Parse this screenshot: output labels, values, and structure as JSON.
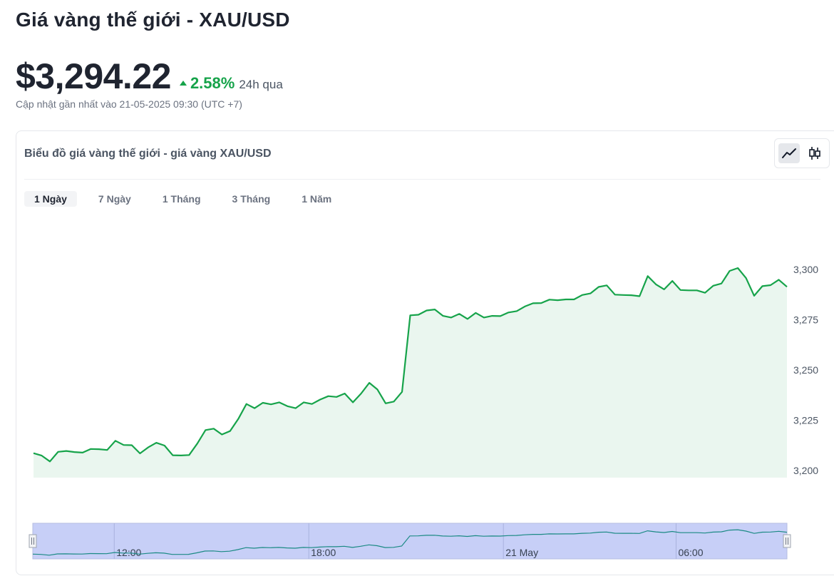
{
  "header": {
    "title": "Giá vàng thế giới - XAU/USD",
    "price": "$3,294.22",
    "change_pct": "2.58%",
    "change_period": "24h qua",
    "updated": "Cập nhật gần nhất vào 21-05-2025 09:30 (UTC +7)"
  },
  "card": {
    "title": "Biểu đồ giá vàng thế giới - giá vàng XAU/USD",
    "tabs": [
      {
        "label": "1 Ngày",
        "active": true
      },
      {
        "label": "7 Ngày",
        "active": false
      },
      {
        "label": "1 Tháng",
        "active": false
      },
      {
        "label": "3 Tháng",
        "active": false
      },
      {
        "label": "1 Năm",
        "active": false
      }
    ],
    "view_toggle": {
      "line_icon": "line-chart-icon",
      "candle_icon": "candlestick-icon",
      "active": "line"
    }
  },
  "colors": {
    "line": "#16a34a",
    "area": "#eaf6ef",
    "up": "#16a34a",
    "navigator_fill": "#c7cff7",
    "navigator_line": "#1b8a84"
  },
  "chart_data": {
    "type": "area",
    "title": "",
    "xlabel": "",
    "ylabel": "",
    "ylim": [
      3200,
      3310
    ],
    "yticks": [
      "3,200",
      "3,225",
      "3,250",
      "3,275",
      "3,300"
    ],
    "ytick_values": [
      3200,
      3225,
      3250,
      3275,
      3300
    ],
    "grid": false,
    "series": [
      {
        "values": [
          3208.6,
          3207.4,
          3204.5,
          3209.3,
          3209.7,
          3209.2,
          3208.9,
          3210.7,
          3210.6,
          3210.2,
          3214.8,
          3212.7,
          3212.6,
          3208.5,
          3211.5,
          3213.8,
          3212.4,
          3207.6,
          3207.5,
          3207.7,
          3213.4,
          3220.1,
          3220.8,
          3217.9,
          3219.6,
          3225.6,
          3233.1,
          3231.0,
          3233.7,
          3232.9,
          3233.9,
          3232.0,
          3231.0,
          3233.9,
          3233.1,
          3235.3,
          3237.0,
          3236.6,
          3238.3,
          3233.9,
          3238.3,
          3243.6,
          3240.3,
          3233.4,
          3234.3,
          3239.1,
          3277.2,
          3277.5,
          3279.6,
          3280.1,
          3276.9,
          3276.1,
          3277.9,
          3275.4,
          3278.4,
          3276.1,
          3276.9,
          3276.8,
          3278.6,
          3279.3,
          3281.6,
          3283.2,
          3283.3,
          3285.0,
          3284.7,
          3285.1,
          3285.1,
          3287.3,
          3288.1,
          3291.3,
          3292.1,
          3287.5,
          3287.3,
          3287.2,
          3286.7,
          3296.7,
          3292.6,
          3290.1,
          3294.3,
          3289.8,
          3289.6,
          3289.6,
          3288.4,
          3291.9,
          3293.0,
          3299.3,
          3300.7,
          3295.7,
          3286.9,
          3291.7,
          3292.2,
          3294.9,
          3291.4
        ]
      }
    ],
    "navigator": {
      "ticks": [
        {
          "label": "12:00",
          "pos": 0.108
        },
        {
          "label": "18:00",
          "pos": 0.366
        },
        {
          "label": "21 May",
          "pos": 0.624
        },
        {
          "label": "06:00",
          "pos": 0.853
        }
      ]
    }
  }
}
